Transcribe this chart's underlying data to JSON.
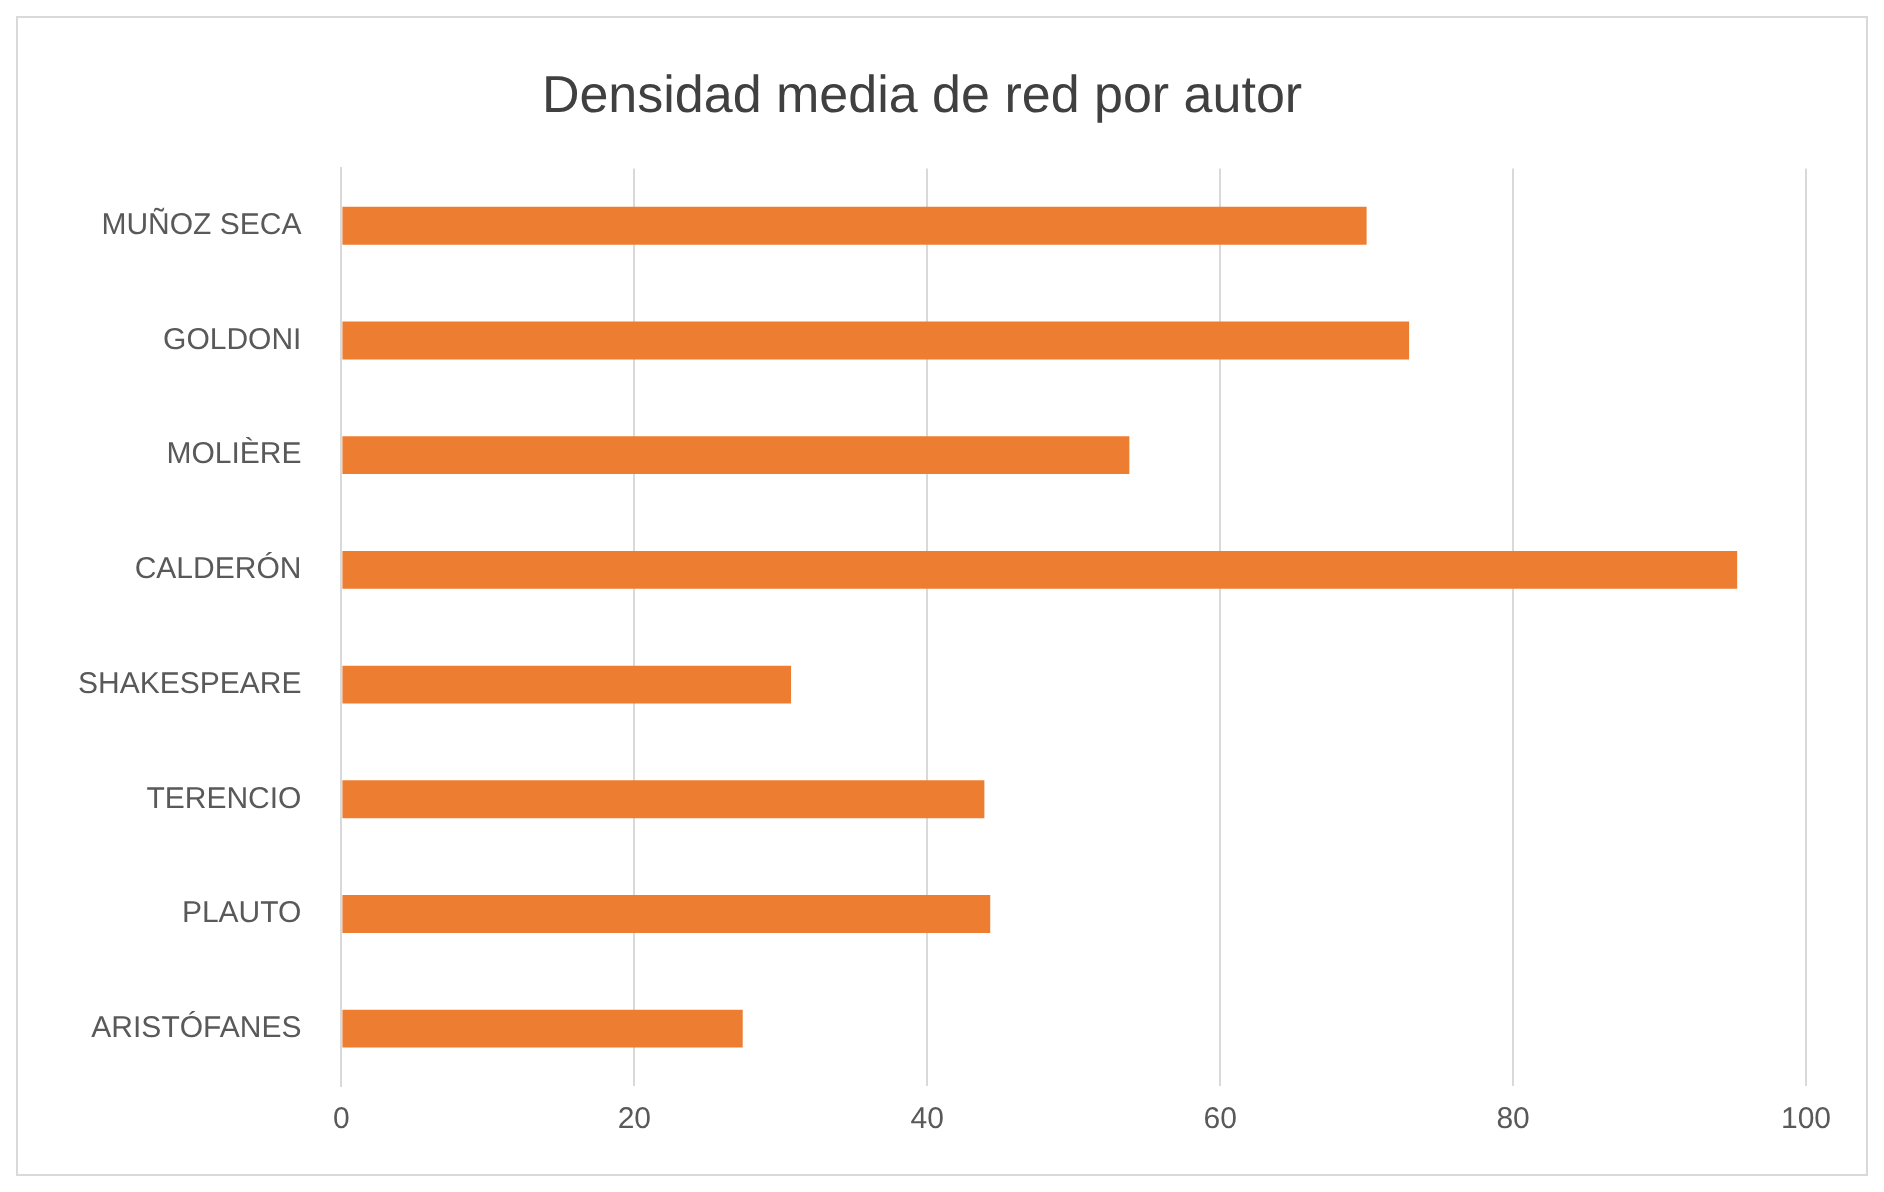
{
  "chart_data": {
    "type": "bar",
    "orientation": "horizontal",
    "title": "Densidad media de red por autor",
    "categories": [
      "MUÑOZ SECA",
      "GOLDONI",
      "MOLIÈRE",
      "CALDERÓN",
      "SHAKESPEARE",
      "TERENCIO",
      "PLAUTO",
      "ARISTÓFANES"
    ],
    "values": [
      70,
      72.9,
      53.8,
      95.3,
      30.7,
      43.9,
      44.3,
      27.4
    ],
    "color": "#ed7d31",
    "xlim": [
      0,
      100
    ],
    "xticks": [
      0,
      20,
      40,
      60,
      80,
      100
    ],
    "grid": "x",
    "legend": false
  }
}
